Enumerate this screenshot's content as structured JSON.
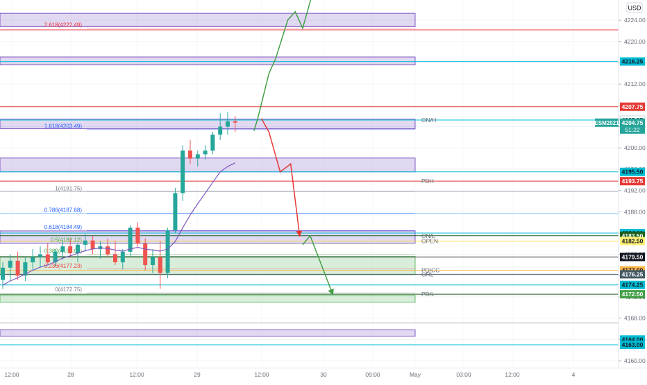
{
  "currency_button": "USD",
  "chart_data": {
    "type": "candlestick",
    "symbol_label": "ESM2021",
    "last_price": "4204.75",
    "countdown": "51:22",
    "y_axis": {
      "range": [
        4158.7,
        4227.8
      ],
      "ticks": [
        "4160.00",
        "4164.00",
        "4168.00",
        "4172.00",
        "4176.00",
        "4180.00",
        "4184.00",
        "4188.00",
        "4192.00",
        "4196.00",
        "4200.00",
        "4204.00",
        "4208.00",
        "4212.00",
        "4216.00",
        "4220.00",
        "4224.00",
        "4228.00"
      ]
    },
    "x_axis": {
      "ticks": [
        "12:00",
        "28",
        "12:00",
        "29",
        "12:00",
        "30",
        "09:00",
        "May",
        "03:00",
        "12:00",
        "4"
      ]
    },
    "fib_levels": [
      {
        "label": "2.618(4222.49)",
        "value": 4222.49,
        "color": "#f23645"
      },
      {
        "label": "1.618(4203.49)",
        "value": 4203.49,
        "color": "#2962ff"
      },
      {
        "label": "1(4191.75)",
        "value": 4191.75,
        "color": "#787b86"
      },
      {
        "label": "0.786(4187.68)",
        "value": 4187.68,
        "color": "#2962ff"
      },
      {
        "label": "0.618(4184.49)",
        "value": 4184.49,
        "color": "#2962ff"
      },
      {
        "label": "0.5(4182.12)",
        "value": 4182.12,
        "color": "#4caf50"
      },
      {
        "label": "0.382(4180.01)",
        "value": 4180.01,
        "color": "#4caf50"
      },
      {
        "label": "0.236(4177.23)",
        "value": 4177.23,
        "color": "#f23645"
      },
      {
        "label": "0(4172.75)",
        "value": 4172.75,
        "color": "#787b86"
      }
    ],
    "zones": [
      {
        "type": "supply",
        "top": 4225.3,
        "bottom": 4222.8
      },
      {
        "type": "supply",
        "top": 4217.1,
        "bottom": 4215.6
      },
      {
        "type": "supply",
        "top": 4205.4,
        "bottom": 4203.6
      },
      {
        "type": "supply",
        "top": 4198.1,
        "bottom": 4195.5
      },
      {
        "type": "supply",
        "top": 4184.4,
        "bottom": 4182.1
      },
      {
        "type": "demand",
        "top": 4179.6,
        "bottom": 4176.2
      },
      {
        "type": "demand",
        "top": 4172.3,
        "bottom": 4171.0
      },
      {
        "type": "supply",
        "top": 4165.8,
        "bottom": 4164.6
      }
    ],
    "session_lines": [
      {
        "label": "ON/H",
        "value": 4205.25
      },
      {
        "label": "PDH",
        "value": 4193.75
      },
      {
        "label": "ON/L",
        "value": 4183.5
      },
      {
        "label": "OPEN",
        "value": 4182.5
      },
      {
        "label": "PD/CC",
        "value": 4177.0
      },
      {
        "label": "ORL",
        "value": 4176.25
      },
      {
        "label": "PD/L",
        "value": 4172.5
      }
    ],
    "price_tags": [
      {
        "text": "4207.75",
        "value": 4207.75,
        "bg": "#e53935",
        "fg": "#ffffff"
      },
      {
        "text": "4205.25",
        "value": 4205.25,
        "bg": "#ffffff",
        "fg": "#131722"
      },
      {
        "text": "4216.25",
        "value": 4216.25,
        "bg": "#00bcd4",
        "fg": "#131722"
      },
      {
        "text": "4195.50",
        "value": 4195.5,
        "bg": "#00bcd4",
        "fg": "#131722"
      },
      {
        "text": "4193.75",
        "value": 4193.75,
        "bg": "#e53935",
        "fg": "#ffffff"
      },
      {
        "text": "4184.00",
        "value": 4184.0,
        "bg": "#00bcd4",
        "fg": "#131722"
      },
      {
        "text": "4183.50",
        "value": 4183.5,
        "bg": "#1b5e20",
        "fg": "#ffffff"
      },
      {
        "text": "4182.50",
        "value": 4182.5,
        "bg": "#fff176",
        "fg": "#131722"
      },
      {
        "text": "4179.50",
        "value": 4179.5,
        "bg": "#131722",
        "fg": "#ffffff"
      },
      {
        "text": "4177.00",
        "value": 4177.0,
        "bg": "#ffb74d",
        "fg": "#131722"
      },
      {
        "text": "4176.25",
        "value": 4176.25,
        "bg": "#455a64",
        "fg": "#ffffff"
      },
      {
        "text": "4174.25",
        "value": 4174.25,
        "bg": "#00bcd4",
        "fg": "#131722"
      },
      {
        "text": "4172.50",
        "value": 4172.5,
        "bg": "#43a047",
        "fg": "#ffffff"
      },
      {
        "text": "4164.00",
        "value": 4164.0,
        "bg": "#00bcd4",
        "fg": "#131722"
      },
      {
        "text": "4163.00",
        "value": 4163.0,
        "bg": "#00bcd4",
        "fg": "#131722"
      }
    ],
    "h_lines": [
      {
        "value": 4222.2,
        "color": "#f23645"
      },
      {
        "value": 4216.25,
        "color": "#00bcd4"
      },
      {
        "value": 4207.75,
        "color": "#e53935"
      },
      {
        "value": 4205.25,
        "color": "#00bcd4"
      },
      {
        "value": 4195.5,
        "color": "#00bcd4"
      },
      {
        "value": 4193.75,
        "color": "#e53935"
      },
      {
        "value": 4191.75,
        "color": "#b0b3bb"
      },
      {
        "value": 4187.68,
        "color": "#90caf9"
      },
      {
        "value": 4184.0,
        "color": "#00bcd4"
      },
      {
        "value": 4183.5,
        "color": "#1b5e20"
      },
      {
        "value": 4182.5,
        "color": "#fdd835"
      },
      {
        "value": 4179.5,
        "color": "#131722"
      },
      {
        "value": 4177.0,
        "color": "#ffb74d"
      },
      {
        "value": 4176.25,
        "color": "#455a64"
      },
      {
        "value": 4174.25,
        "color": "#00bcd4"
      },
      {
        "value": 4172.5,
        "color": "#1b5e20"
      },
      {
        "value": 4167.1,
        "color": "#b0b3bb"
      },
      {
        "value": 4163.0,
        "color": "#00bcd4"
      }
    ],
    "candles": [
      {
        "o": 4175.2,
        "h": 4178.5,
        "l": 4173.5,
        "c": 4177.5
      },
      {
        "o": 4177.5,
        "h": 4180.0,
        "l": 4175.0,
        "c": 4178.8
      },
      {
        "o": 4178.8,
        "h": 4180.5,
        "l": 4175.2,
        "c": 4176.0
      },
      {
        "o": 4176.0,
        "h": 4179.5,
        "l": 4175.0,
        "c": 4178.5
      },
      {
        "o": 4178.5,
        "h": 4181.0,
        "l": 4177.0,
        "c": 4179.5
      },
      {
        "o": 4179.5,
        "h": 4181.5,
        "l": 4177.5,
        "c": 4180.0
      },
      {
        "o": 4180.0,
        "h": 4182.0,
        "l": 4178.0,
        "c": 4178.5
      },
      {
        "o": 4178.5,
        "h": 4181.0,
        "l": 4177.8,
        "c": 4180.5
      },
      {
        "o": 4180.5,
        "h": 4182.5,
        "l": 4179.0,
        "c": 4181.5
      },
      {
        "o": 4181.5,
        "h": 4183.0,
        "l": 4179.5,
        "c": 4180.2
      },
      {
        "o": 4180.2,
        "h": 4182.0,
        "l": 4178.5,
        "c": 4181.8
      },
      {
        "o": 4181.8,
        "h": 4183.8,
        "l": 4180.5,
        "c": 4182.6
      },
      {
        "o": 4182.6,
        "h": 4183.5,
        "l": 4180.0,
        "c": 4181.0
      },
      {
        "o": 4181.0,
        "h": 4182.5,
        "l": 4179.2,
        "c": 4181.5
      },
      {
        "o": 4181.5,
        "h": 4183.0,
        "l": 4179.5,
        "c": 4180.0
      },
      {
        "o": 4180.0,
        "h": 4182.5,
        "l": 4178.0,
        "c": 4178.5
      },
      {
        "o": 4178.5,
        "h": 4181.0,
        "l": 4177.2,
        "c": 4180.5
      },
      {
        "o": 4180.5,
        "h": 4185.5,
        "l": 4179.5,
        "c": 4185.0
      },
      {
        "o": 4185.0,
        "h": 4186.0,
        "l": 4181.5,
        "c": 4182.0
      },
      {
        "o": 4182.0,
        "h": 4183.0,
        "l": 4177.0,
        "c": 4178.0
      },
      {
        "o": 4178.0,
        "h": 4181.0,
        "l": 4176.5,
        "c": 4179.5
      },
      {
        "o": 4179.5,
        "h": 4182.5,
        "l": 4173.5,
        "c": 4176.5
      },
      {
        "o": 4176.5,
        "h": 4185.0,
        "l": 4175.5,
        "c": 4184.5
      },
      {
        "o": 4184.5,
        "h": 4192.5,
        "l": 4184.0,
        "c": 4191.5
      },
      {
        "o": 4191.5,
        "h": 4200.5,
        "l": 4190.0,
        "c": 4199.5
      },
      {
        "o": 4199.5,
        "h": 4201.5,
        "l": 4197.0,
        "c": 4198.0
      },
      {
        "o": 4198.0,
        "h": 4199.5,
        "l": 4196.5,
        "c": 4198.8
      },
      {
        "o": 4198.8,
        "h": 4200.5,
        "l": 4197.8,
        "c": 4199.5
      },
      {
        "o": 4199.5,
        "h": 4203.0,
        "l": 4198.8,
        "c": 4202.5
      },
      {
        "o": 4202.5,
        "h": 4206.5,
        "l": 4201.5,
        "c": 4204.0
      },
      {
        "o": 4204.0,
        "h": 4206.8,
        "l": 4202.5,
        "c": 4205.0
      },
      {
        "o": 4205.0,
        "h": 4206.0,
        "l": 4203.0,
        "c": 4204.75
      }
    ],
    "moving_average": [
      4174.2,
      4175.0,
      4175.6,
      4176.3,
      4177.0,
      4177.6,
      4178.0,
      4178.6,
      4179.3,
      4179.7,
      4180.2,
      4180.7,
      4181.0,
      4181.2,
      4181.1,
      4180.8,
      4180.6,
      4181.0,
      4181.3,
      4181.0,
      4180.8,
      4180.6,
      4181.0,
      4182.4,
      4185.0,
      4187.4,
      4189.5,
      4191.5,
      4193.5,
      4195.5,
      4196.5,
      4197.2
    ],
    "projections": [
      {
        "direction": "up",
        "points": [
          [
            33.5,
            4203.2
          ],
          [
            34.0,
            4205.5
          ],
          [
            35.5,
            4214.0
          ],
          [
            36.4,
            4216.8
          ],
          [
            38.0,
            4224.0
          ],
          [
            39.0,
            4225.6
          ],
          [
            40.0,
            4222.5
          ],
          [
            41.5,
            4230.0
          ]
        ]
      },
      {
        "direction": "down",
        "points": [
          [
            34.5,
            4205.5
          ],
          [
            35.5,
            4203.0
          ],
          [
            37.0,
            4195.5
          ],
          [
            38.4,
            4197.0
          ],
          [
            39.6,
            4183.5
          ]
        ]
      },
      {
        "direction": "down2",
        "points": [
          [
            40.0,
            4181.8
          ],
          [
            41.0,
            4183.5
          ],
          [
            44.0,
            4172.5
          ]
        ]
      }
    ]
  }
}
